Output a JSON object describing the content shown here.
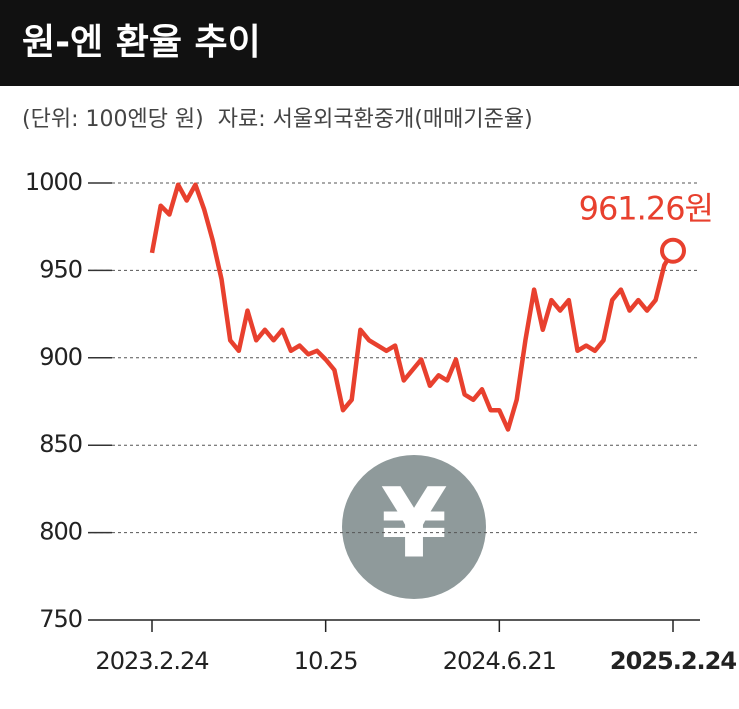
{
  "chart_data": {
    "type": "line",
    "title": "원-엔 환율 추이",
    "subtitle": "(단위: 100엔당 원)  자료: 서울외국환중개(매매기준율)",
    "categories": [
      "2023.2.24",
      null,
      null,
      null,
      null,
      null,
      null,
      null,
      null,
      null,
      null,
      null,
      null,
      null,
      null,
      null,
      null,
      null,
      null,
      null,
      "10.25",
      null,
      null,
      null,
      null,
      null,
      null,
      null,
      null,
      null,
      null,
      null,
      null,
      null,
      null,
      null,
      null,
      null,
      null,
      null,
      "2024.6.21",
      null,
      null,
      null,
      null,
      null,
      null,
      null,
      null,
      null,
      null,
      null,
      null,
      null,
      null,
      null,
      null,
      null,
      null,
      null,
      "2025.2.24"
    ],
    "series": [
      {
        "name": "원-엔 환율",
        "color": "#e8402e",
        "values": [
          960,
          987,
          982,
          999,
          990,
          999,
          985,
          967,
          945,
          910,
          904,
          927,
          910,
          916,
          910,
          916,
          904,
          907,
          902,
          904,
          899,
          893,
          870,
          876,
          916,
          910,
          907,
          904,
          907,
          887,
          893,
          899,
          884,
          890,
          887,
          899,
          879,
          876,
          882,
          870,
          870,
          859,
          876,
          910,
          939,
          916,
          933,
          927,
          933,
          904,
          907,
          904,
          910,
          933,
          939,
          927,
          933,
          927,
          933,
          953,
          961.26
        ],
        "value_labels": [
          null,
          null,
          null,
          null,
          null,
          null,
          null,
          null,
          null,
          null,
          null,
          null,
          null,
          null,
          null,
          null,
          null,
          null,
          null,
          null,
          null,
          null,
          null,
          null,
          null,
          null,
          null,
          null,
          null,
          null,
          null,
          null,
          null,
          null,
          null,
          null,
          null,
          null,
          null,
          null,
          null,
          null,
          null,
          null,
          null,
          null,
          null,
          null,
          null,
          null,
          null,
          null,
          null,
          null,
          null,
          null,
          null,
          null,
          null,
          null,
          "961.26원"
        ]
      }
    ],
    "ylim": [
      750,
      1000
    ],
    "yticks": [
      750,
      800,
      850,
      900,
      950,
      1000
    ],
    "grid": true
  }
}
